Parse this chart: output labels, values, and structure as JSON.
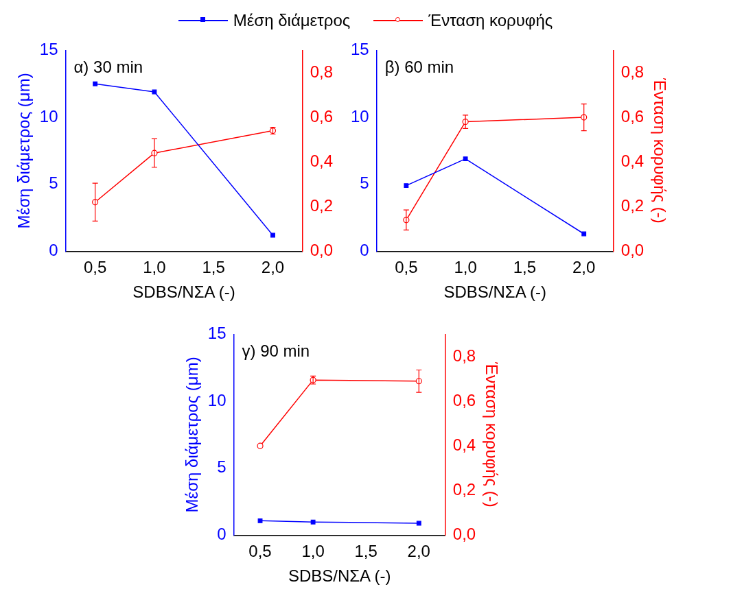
{
  "chart_data": [
    {
      "type": "line",
      "ylabel": "Μέση διάμετρος (μm)",
      "xlabel": "SDBS/ΝΣΑ (-)",
      "annotations": [
        "α) 30 min"
      ],
      "legend": "top",
      "grid": false,
      "xlim": [
        0.25,
        2.25
      ],
      "xticks": [
        {
          "value": 0.5,
          "label": "0,5"
        },
        {
          "value": 1.0,
          "label": "1,0"
        },
        {
          "value": 1.5,
          "label": "1,5"
        },
        {
          "value": 2.0,
          "label": "2,0"
        }
      ],
      "ylim": [
        0,
        15
      ],
      "yticks": [
        0,
        5,
        10,
        15
      ],
      "y2lim": [
        0,
        0.9
      ],
      "y2ticks": [
        {
          "value": 0,
          "label": "0,0"
        },
        {
          "value": 0.2,
          "label": "0,2"
        },
        {
          "value": 0.4,
          "label": "0,4"
        },
        {
          "value": 0.6,
          "label": "0,6"
        },
        {
          "value": 0.8,
          "label": "0,8"
        }
      ],
      "series": [
        {
          "name": "Μέση διάμετρος",
          "color": "#0000ff",
          "marker": "square",
          "x": [
            0.5,
            1.0,
            2.0
          ],
          "values": [
            12.5,
            11.9,
            1.2
          ]
        },
        {
          "name": "Ένταση κορυφής",
          "color": "#ff0000",
          "marker": "circle",
          "axis": "y2",
          "x": [
            0.5,
            1.0,
            2.0
          ],
          "values": [
            0.22,
            0.44,
            0.54
          ],
          "errors": [
            0.085,
            0.064,
            0.015
          ]
        }
      ]
    },
    {
      "type": "line",
      "y2label": "Ένταση κορυφής (-)",
      "xlabel": "SDBS/ΝΣΑ (-)",
      "annotations": [
        "β) 60 min"
      ],
      "grid": false,
      "xlim": [
        0.25,
        2.25
      ],
      "xticks": [
        {
          "value": 0.5,
          "label": "0,5"
        },
        {
          "value": 1.0,
          "label": "1,0"
        },
        {
          "value": 1.5,
          "label": "1,5"
        },
        {
          "value": 2.0,
          "label": "2,0"
        }
      ],
      "ylim": [
        0,
        15
      ],
      "yticks": [
        0,
        5,
        10,
        15
      ],
      "y2lim": [
        0,
        0.9
      ],
      "y2ticks": [
        {
          "value": 0,
          "label": "0,0"
        },
        {
          "value": 0.2,
          "label": "0,2"
        },
        {
          "value": 0.4,
          "label": "0,4"
        },
        {
          "value": 0.6,
          "label": "0,6"
        },
        {
          "value": 0.8,
          "label": "0,8"
        }
      ],
      "series": [
        {
          "color": "#0000ff",
          "marker": "square",
          "x": [
            0.5,
            1.0,
            2.0
          ],
          "values": [
            4.9,
            6.9,
            1.3
          ]
        },
        {
          "color": "#ff0000",
          "marker": "circle",
          "axis": "y2",
          "x": [
            0.5,
            1.0,
            2.0
          ],
          "values": [
            0.14,
            0.58,
            0.6
          ],
          "errors": [
            0.045,
            0.03,
            0.06
          ]
        }
      ]
    },
    {
      "type": "line",
      "ylabel": "Μέση διάμετρος (μm)",
      "y2label": "Ένταση κορυφής (-)",
      "xlabel": "SDBS/ΝΣΑ (-)",
      "annotations": [
        "γ) 90 min"
      ],
      "grid": false,
      "xlim": [
        0.25,
        2.25
      ],
      "xticks": [
        {
          "value": 0.5,
          "label": "0,5"
        },
        {
          "value": 1.0,
          "label": "1,0"
        },
        {
          "value": 1.5,
          "label": "1,5"
        },
        {
          "value": 2.0,
          "label": "2,0"
        }
      ],
      "ylim": [
        0,
        15
      ],
      "yticks": [
        0,
        5,
        10,
        15
      ],
      "y2lim": [
        0,
        0.9
      ],
      "y2ticks": [
        {
          "value": 0,
          "label": "0,0"
        },
        {
          "value": 0.2,
          "label": "0,2"
        },
        {
          "value": 0.4,
          "label": "0,4"
        },
        {
          "value": 0.6,
          "label": "0,6"
        },
        {
          "value": 0.8,
          "label": "0,8"
        }
      ],
      "series": [
        {
          "color": "#0000ff",
          "marker": "square",
          "x": [
            0.5,
            1.0,
            2.0
          ],
          "values": [
            1.08,
            0.98,
            0.89
          ]
        },
        {
          "color": "#ff0000",
          "marker": "circle",
          "axis": "y2",
          "x": [
            0.5,
            1.0,
            2.0
          ],
          "values": [
            0.4,
            0.695,
            0.69
          ],
          "errors": [
            null,
            0.018,
            0.05
          ]
        }
      ]
    }
  ]
}
